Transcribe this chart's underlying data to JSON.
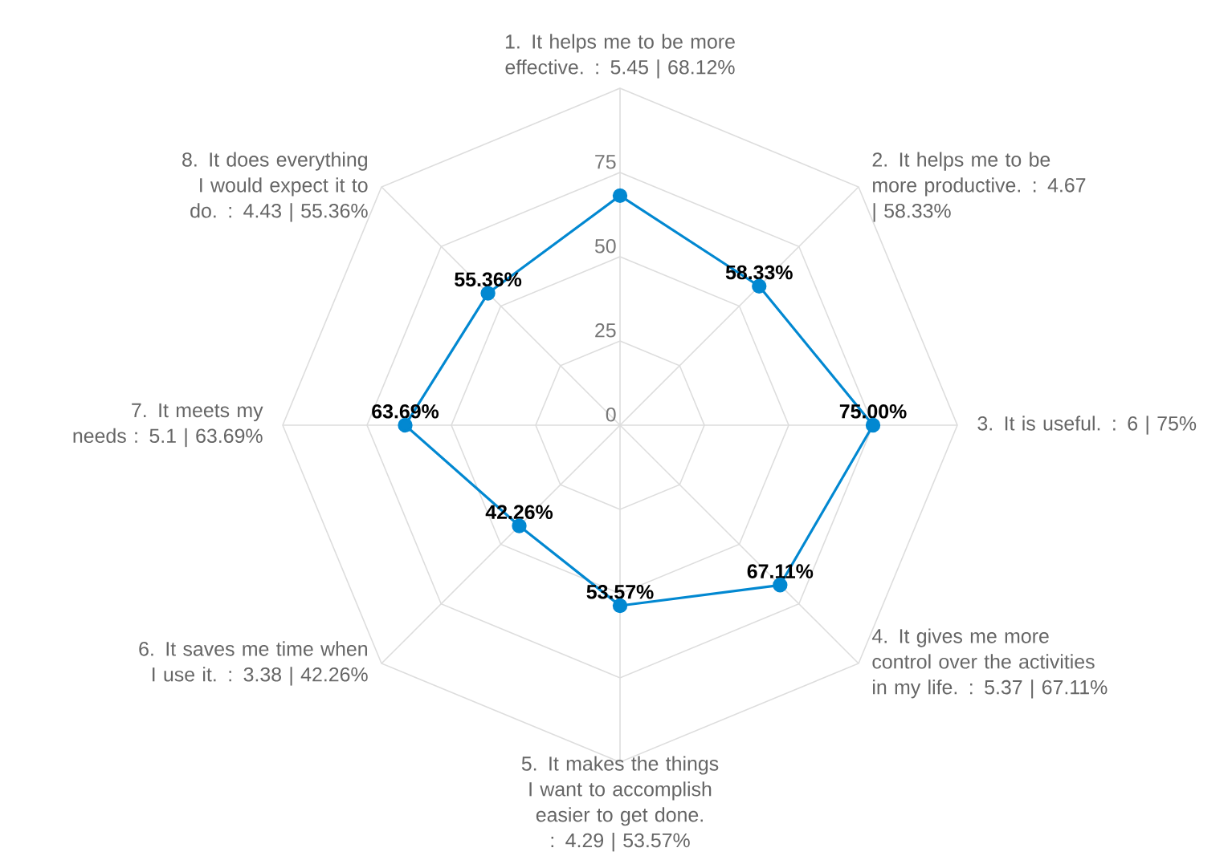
{
  "chart_data": {
    "type": "radar",
    "categories": [
      "1. It helps me to be more effective. : 5.45 | 68.12%",
      "2. It helps me to be more productive. : 4.67 | 58.33%",
      "3. It is useful. : 6 | 75%",
      "4. It gives me more control over the activities in my life. : 5.37 | 67.11%",
      "5. It makes the things I want to accomplish easier to get done. : 4.29 | 53.57%",
      "6. It saves me time when I use it. : 3.38 | 42.26%",
      "7. It meets my needs : 5.1 | 63.69%",
      "8. It does everything I would expect it to do. : 4.43 | 55.36%"
    ],
    "series": [
      {
        "color": "#0288d1",
        "values": [
          68.12,
          58.33,
          75.0,
          67.11,
          53.57,
          42.26,
          63.69,
          55.36
        ],
        "value_labels": [
          null,
          "58.33%",
          "75.00%",
          "67.11%",
          "53.57%",
          "42.26%",
          "63.69%",
          "55.36%"
        ]
      }
    ],
    "ylim": [
      0,
      100
    ],
    "yticks": [
      0,
      25,
      50,
      75
    ],
    "grid": true,
    "marker": "circle",
    "line_style": "solid"
  }
}
